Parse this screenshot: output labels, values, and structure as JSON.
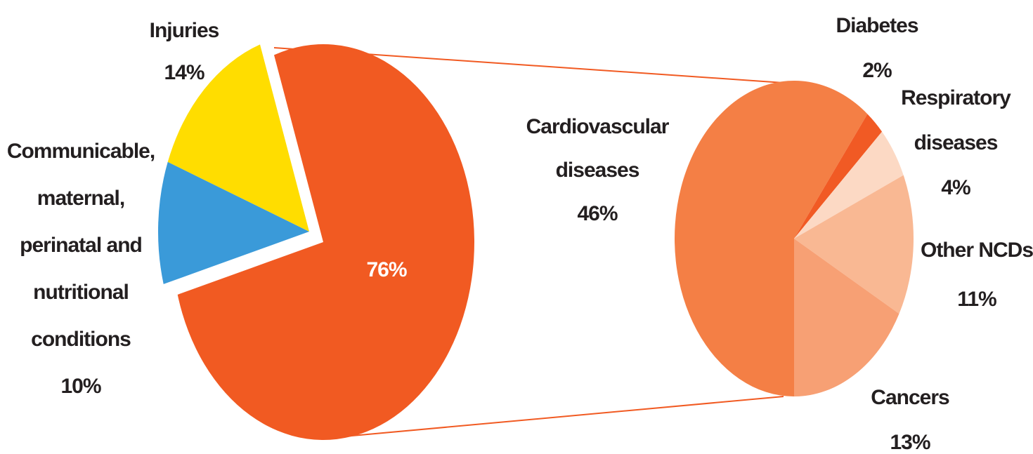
{
  "chart_data": [
    {
      "type": "pie",
      "categories": [
        "Communicable, maternal, perinatal and nutritional conditions",
        "Injuries",
        null
      ],
      "values": [
        10,
        14,
        76
      ],
      "value_labels": [
        "10%",
        "14%",
        "76%"
      ],
      "colors": [
        "#3a9ad9",
        "#ffdd00",
        "#f15a22"
      ]
    },
    {
      "type": "pie",
      "categories": [
        "Cardiovascular diseases",
        "Diabetes",
        "Respiratory diseases",
        "Other NCDs",
        "Cancers"
      ],
      "values": [
        46,
        2,
        4,
        11,
        13
      ],
      "value_labels": [
        "46%",
        "2%",
        "4%",
        "11%",
        "13%"
      ],
      "colors": [
        "#f47f45",
        "#f15a24",
        "#fcd9c4",
        "#f9b893",
        "#f7a074"
      ]
    }
  ]
}
